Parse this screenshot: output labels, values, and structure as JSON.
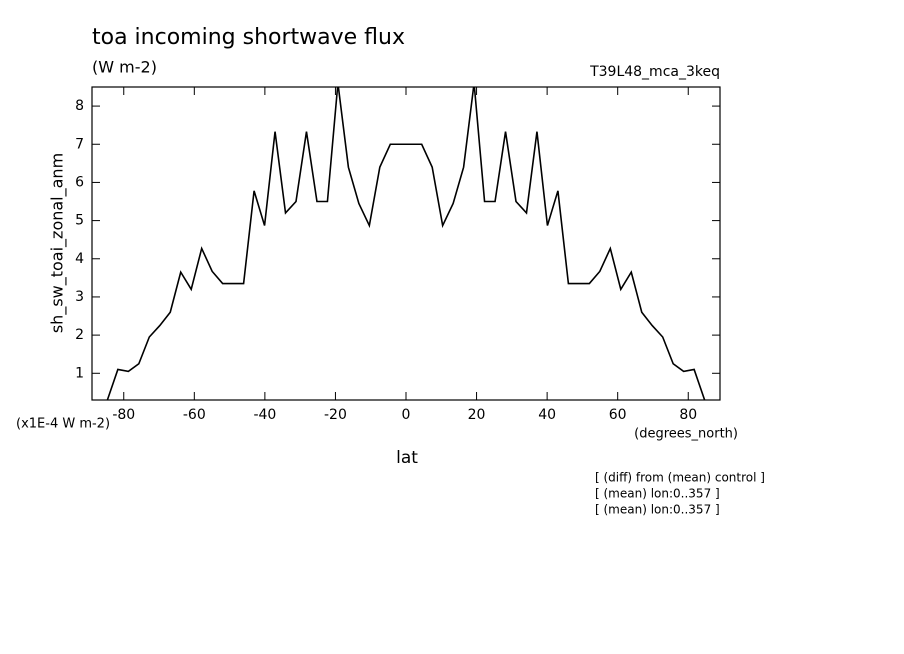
{
  "chart_data": {
    "type": "line",
    "title": "toa incoming shortwave flux",
    "subtitle": "(W m-2)",
    "run_label": "T39L48_mca_3keq",
    "y_label": "sh_sw_toai_zonal_anm",
    "y_scale_note": "(x1E-4 W m-2)",
    "x_label": "lat",
    "x_units": "(degrees_north)",
    "annotations": [
      "[ (diff) from (mean) control ]",
      "[ (mean) lon:0..357 ]",
      "[ (mean) lon:0..357 ]"
    ],
    "color": "#000000",
    "x": [
      -87.61,
      -84.64,
      -81.67,
      -78.7,
      -75.73,
      -72.76,
      -69.79,
      -66.82,
      -63.85,
      -60.88,
      -57.91,
      -54.94,
      -51.97,
      -49.0,
      -46.03,
      -43.06,
      -40.09,
      -37.12,
      -34.15,
      -31.18,
      -28.21,
      -25.24,
      -22.27,
      -19.3,
      -16.33,
      -13.36,
      -10.39,
      -7.42,
      -4.45,
      -1.48,
      1.48,
      4.45,
      7.42,
      10.39,
      13.36,
      16.33,
      19.3,
      22.27,
      25.24,
      28.21,
      31.18,
      34.15,
      37.12,
      40.09,
      43.06,
      46.03,
      49.0,
      51.97,
      54.94,
      57.91,
      60.88,
      63.85,
      66.82,
      69.79,
      72.76,
      75.73,
      78.7,
      81.67,
      84.64,
      87.61
    ],
    "values": [
      0.0,
      0.3,
      1.1,
      1.05,
      1.25,
      1.95,
      2.25,
      2.6,
      3.65,
      3.2,
      4.27,
      3.67,
      3.35,
      3.35,
      3.35,
      5.78,
      4.87,
      7.33,
      5.2,
      5.5,
      7.33,
      5.5,
      5.5,
      8.6,
      6.4,
      5.45,
      4.87,
      6.4,
      7.0,
      7.0,
      7.0,
      7.0,
      6.4,
      4.87,
      5.45,
      6.4,
      8.6,
      5.5,
      5.5,
      7.33,
      5.5,
      5.2,
      7.33,
      4.87,
      5.78,
      3.35,
      3.35,
      3.35,
      3.67,
      4.27,
      3.2,
      3.65,
      2.6,
      2.25,
      1.95,
      1.25,
      1.05,
      1.1,
      0.3,
      0.0
    ],
    "xlim": [
      -89,
      89
    ],
    "ylim": [
      0.3,
      8.5
    ],
    "xticks": [
      -80,
      -60,
      -40,
      -20,
      0,
      20,
      40,
      60,
      80
    ],
    "yticks": [
      1,
      2,
      3,
      4,
      5,
      6,
      7,
      8
    ]
  }
}
